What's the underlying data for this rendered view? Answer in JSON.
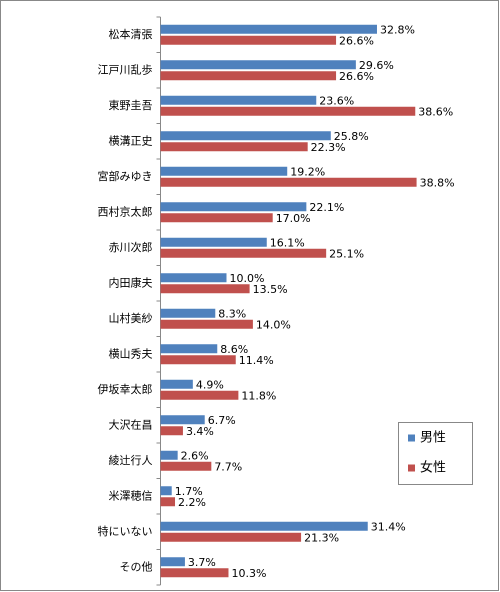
{
  "chart_data": {
    "type": "bar",
    "orientation": "horizontal",
    "categories": [
      "松本清張",
      "江戸川乱歩",
      "東野圭吾",
      "横溝正史",
      "宮部みゆき",
      "西村京太郎",
      "赤川次郎",
      "内田康夫",
      "山村美紗",
      "横山秀夫",
      "伊坂幸太郎",
      "大沢在昌",
      "綾辻行人",
      "米澤穂信",
      "特にいない",
      "その他"
    ],
    "series": [
      {
        "name": "男性",
        "color": "#4f81bd",
        "values": [
          32.8,
          29.6,
          23.6,
          25.8,
          19.2,
          22.1,
          16.1,
          10.0,
          8.3,
          8.6,
          4.9,
          6.7,
          2.6,
          1.7,
          31.4,
          3.7
        ],
        "value_labels": [
          "32.8%",
          "29.6%",
          "23.6%",
          "25.8%",
          "19.2%",
          "22.1%",
          "16.1%",
          "10.0%",
          "8.3%",
          "8.6%",
          "4.9%",
          "6.7%",
          "2.6%",
          "1.7%",
          "31.4%",
          "3.7%"
        ]
      },
      {
        "name": "女性",
        "color": "#c0504d",
        "values": [
          26.6,
          26.6,
          38.6,
          22.3,
          38.8,
          17.0,
          25.1,
          13.5,
          14.0,
          11.4,
          11.8,
          3.4,
          7.7,
          2.2,
          21.3,
          10.3
        ],
        "value_labels": [
          "26.6%",
          "26.6%",
          "38.6%",
          "22.3%",
          "38.8%",
          "17.0%",
          "25.1%",
          "13.5%",
          "14.0%",
          "11.4%",
          "11.8%",
          "3.4%",
          "7.7%",
          "2.2%",
          "21.3%",
          "10.3%"
        ]
      }
    ],
    "legend": "lower-right"
  }
}
